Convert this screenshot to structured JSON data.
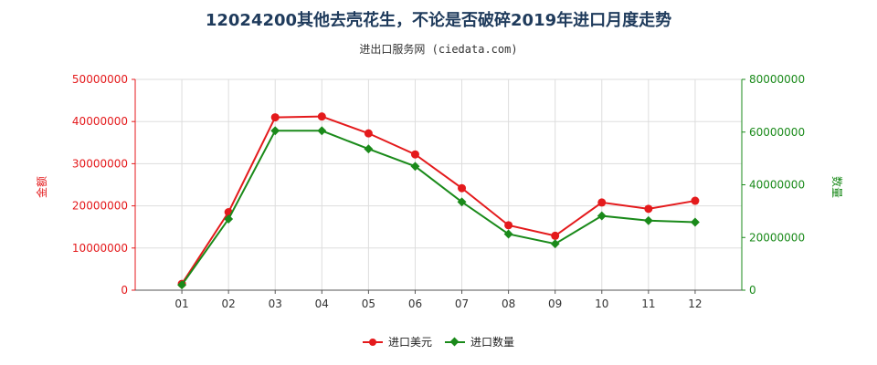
{
  "title": "12024200其他去壳花生，不论是否破碎2019年进口月度走势",
  "subtitle": "进出口服务网 (ciedata.com)",
  "colors": {
    "amount": "#e41a1c",
    "quantity": "#1a8a1a",
    "left_axis": "#e41a1c",
    "right_axis": "#1a8a1a"
  },
  "chart_data": {
    "type": "line",
    "categories": [
      "01",
      "02",
      "03",
      "04",
      "05",
      "06",
      "07",
      "08",
      "09",
      "10",
      "11",
      "12"
    ],
    "ylabel_left": "金额",
    "ylabel_right": "数量",
    "ylim_left": [
      0,
      50000000
    ],
    "ylim_right": [
      0,
      80000000
    ],
    "yticks_left": [
      "0",
      "10000000",
      "20000000",
      "30000000",
      "40000000",
      "50000000"
    ],
    "yticks_right": [
      "0",
      "20000000",
      "40000000",
      "60000000",
      "80000000"
    ],
    "legend_position": "bottom",
    "grid": true,
    "series": [
      {
        "name": "进口美元",
        "axis": "left",
        "values": [
          1500000,
          18500000,
          41000000,
          41200000,
          37200000,
          32200000,
          24200000,
          15400000,
          12900000,
          20800000,
          19300000,
          21200000
        ]
      },
      {
        "name": "进口数量",
        "axis": "right",
        "values": [
          2000000,
          27000000,
          60500000,
          60500000,
          53600000,
          47000000,
          33500000,
          21300000,
          17600000,
          28200000,
          26400000,
          25800000
        ]
      }
    ]
  }
}
